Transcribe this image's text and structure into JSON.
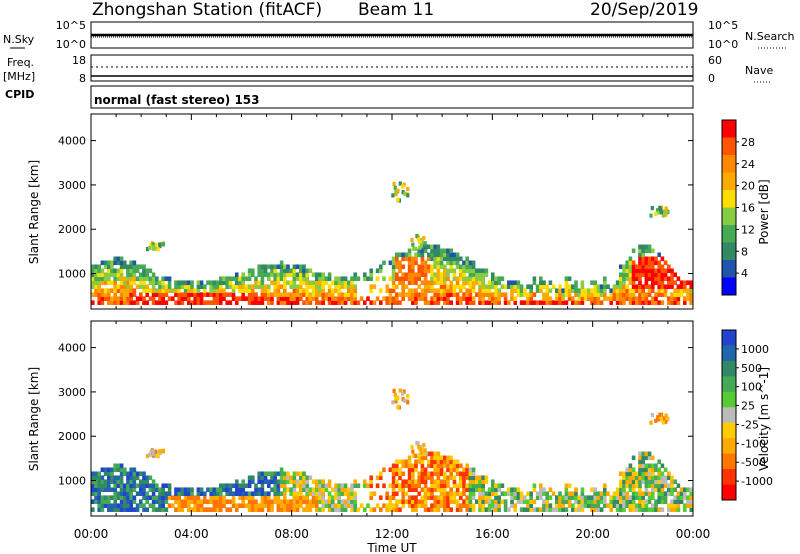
{
  "header": {
    "station": "Zhongshan Station (fitACF)",
    "beam": "Beam 11",
    "date": "20/Sep/2019"
  },
  "panels": {
    "nsky_label": "N.Sky",
    "nsearch_label": "N.Search",
    "nsky_ticks": [
      "10^5",
      "10^0"
    ],
    "nsearch_ticks": [
      "10^5",
      "10^0"
    ],
    "freq_label": "Freq.",
    "freq_unit": "[MHz]",
    "freq_ticks": [
      "18",
      "8"
    ],
    "nave_label": "Nave",
    "nave_ticks": [
      "60",
      "0"
    ],
    "cpid_label": "CPID",
    "cpid_text": "normal (fast stereo) 153"
  },
  "colorbars": {
    "power": {
      "label": "Power [dB]",
      "ticks": [
        "28",
        "24",
        "20",
        "16",
        "12",
        "8",
        "4"
      ],
      "colors": [
        "#ff0000",
        "#ff5500",
        "#ff8800",
        "#ffaa00",
        "#ffdd00",
        "#88cc44",
        "#44aa55",
        "#338866",
        "#2255aa",
        "#0000ff"
      ]
    },
    "velocity": {
      "label": "Velocity [m s^-1]",
      "ticks": [
        "1000",
        "500",
        "100",
        "25",
        "-25",
        "-100",
        "-500",
        "-1000"
      ],
      "colors": [
        "#2244cc",
        "#2266aa",
        "#338866",
        "#44aa55",
        "#55cc33",
        "#bbbbbb",
        "#ffcc00",
        "#ffaa00",
        "#ff7700",
        "#ff3300",
        "#ff0000"
      ]
    }
  },
  "chart_data": [
    {
      "type": "heatmap",
      "name": "power",
      "ylabel": "Slant Range [km]",
      "yticks": [
        1000,
        2000,
        3000,
        4000
      ],
      "ylim": [
        200,
        4600
      ],
      "xlim": [
        0,
        24
      ],
      "xticks": [
        "00:00",
        "04:00",
        "08:00",
        "12:00",
        "16:00",
        "20:00",
        "00:00"
      ],
      "xlabel": "Time UT",
      "colorbar_range": [
        0,
        32
      ]
    },
    {
      "type": "heatmap",
      "name": "velocity",
      "ylabel": "Slant Range [km]",
      "yticks": [
        1000,
        2000,
        3000,
        4000
      ],
      "ylim": [
        200,
        4600
      ],
      "xlim": [
        0,
        24
      ],
      "xticks": [
        "00:00",
        "04:00",
        "08:00",
        "12:00",
        "16:00",
        "20:00",
        "00:00"
      ],
      "xlabel": "Time UT",
      "colorbar_range": [
        -1000,
        1000
      ]
    }
  ]
}
